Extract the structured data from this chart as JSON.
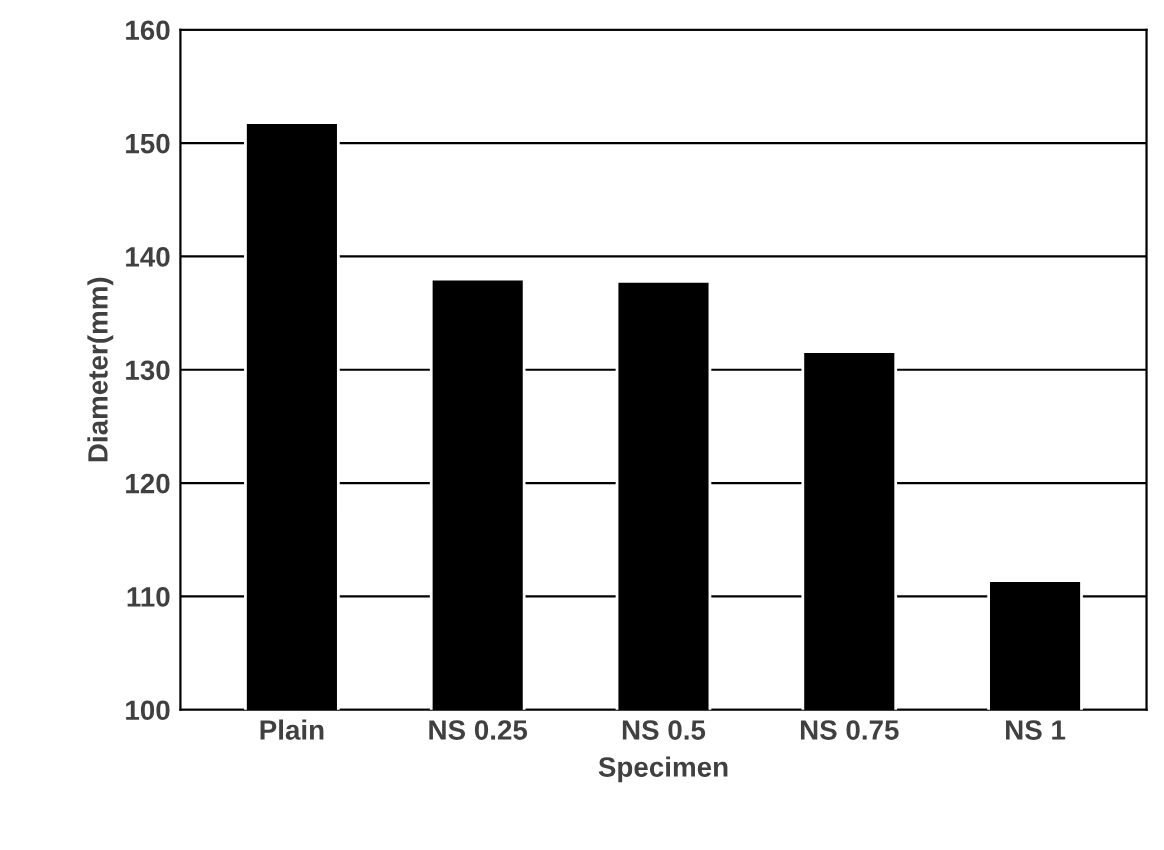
{
  "chart_data": {
    "type": "bar",
    "xlabel": "Specimen",
    "ylabel": "Diameter(mm)",
    "categories": [
      "Plain",
      "NS 0.25",
      "NS 0.5",
      "NS 0.75",
      "NS 1"
    ],
    "values": [
      151.8,
      138.0,
      137.8,
      131.6,
      111.4
    ],
    "color": "#000000",
    "ylim": [
      100,
      160
    ],
    "yticks": [
      100,
      110,
      120,
      130,
      140,
      150,
      160
    ],
    "grid": "y",
    "legend": false
  }
}
